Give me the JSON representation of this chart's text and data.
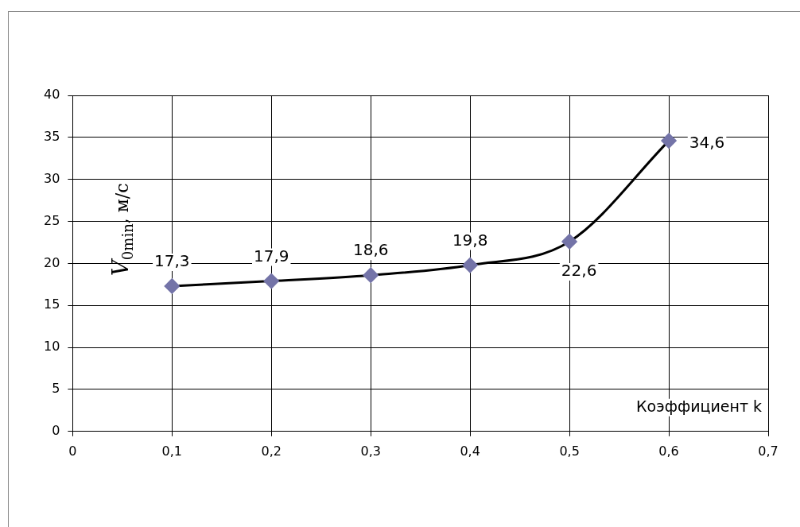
{
  "chart_data": {
    "type": "line",
    "xlabel": "Коэффициент k",
    "ylabel": "V$_{0min}$, м/с",
    "x": [
      0.1,
      0.2,
      0.3,
      0.4,
      0.5,
      0.6
    ],
    "series": [
      {
        "color": "#000000",
        "colors": [
          "#7474a8",
          "#7474a8",
          "#7474a8",
          "#7474a8",
          "#7474a8",
          "#7474a8"
        ],
        "values": [
          17.3,
          17.9,
          18.6,
          19.8,
          22.6,
          34.6
        ],
        "value_labels": [
          "17,3",
          "17,9",
          "18,6",
          "19,8",
          "22,6",
          "34,6"
        ]
      }
    ],
    "xlim": [
      0,
      0.7
    ],
    "xticks": [
      0,
      {
        "value": 0.1,
        "label": "0,1"
      },
      {
        "value": 0.2,
        "label": "0,2"
      },
      {
        "value": 0.3,
        "label": "0,3"
      },
      {
        "value": 0.4,
        "label": "0,4"
      },
      {
        "value": 0.5,
        "label": "0,5"
      },
      {
        "value": 0.6,
        "label": "0,6"
      },
      {
        "value": 0.7,
        "label": "0,7"
      }
    ],
    "ylim": [
      0,
      40
    ],
    "yticks": [
      0,
      5,
      10,
      15,
      20,
      25,
      30,
      35,
      40
    ],
    "grid": true,
    "legend": false,
    "marker": "diamond",
    "line_style": "solid"
  }
}
